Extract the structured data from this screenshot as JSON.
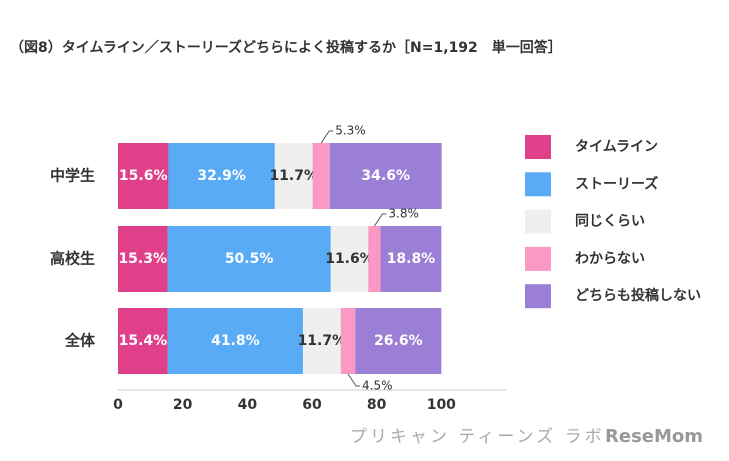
{
  "chart_data": {
    "type": "stacked-bar-horizontal",
    "title": "（図8）タイムライン／ストーリーズどちらによく投稿するか［N=1,192　単一回答］",
    "categories": [
      "中学生",
      "高校生",
      "全体"
    ],
    "series": [
      {
        "name": "タイムライン",
        "color": "#e0408a",
        "values": [
          15.6,
          15.3,
          15.4
        ],
        "value_labels": [
          "15.6%",
          "15.3%",
          "15.4%"
        ]
      },
      {
        "name": "ストーリーズ",
        "color": "#5aabf5",
        "values": [
          32.9,
          50.5,
          41.8
        ],
        "value_labels": [
          "32.9%",
          "50.5%",
          "41.8%"
        ]
      },
      {
        "name": "同じくらい",
        "color": "#efefef",
        "values": [
          11.7,
          11.6,
          11.7
        ],
        "value_labels": [
          "11.7%",
          "11.6%",
          "11.7%"
        ]
      },
      {
        "name": "わからない",
        "color": "#f999c4",
        "values": [
          5.3,
          3.8,
          4.5
        ],
        "value_labels": [
          "5.3%",
          "3.8%",
          "4.5%"
        ]
      },
      {
        "name": "どちらも投稿しない",
        "color": "#9b7fd6",
        "values": [
          34.6,
          18.8,
          26.6
        ],
        "value_labels": [
          "34.6%",
          "18.8%",
          "26.6%"
        ]
      }
    ],
    "xlim": [
      0,
      120
    ],
    "xticks": [
      0,
      20,
      40,
      60,
      80,
      100
    ],
    "legend": "right"
  },
  "footer": {
    "brand": "プリキャン ティーンズ ラボ",
    "source": "ReseMom"
  }
}
